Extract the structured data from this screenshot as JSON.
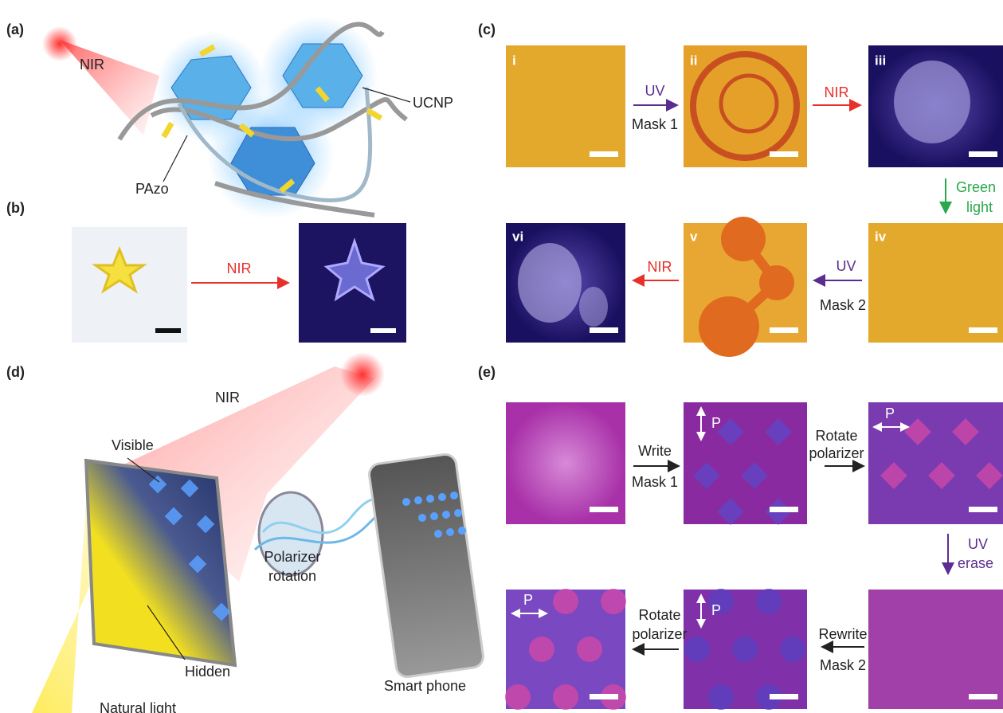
{
  "panels": {
    "a": {
      "label": "(a)",
      "nir": "NIR",
      "ucnp": "UCNP",
      "pazo": "PAzo"
    },
    "b": {
      "label": "(b)",
      "arrow": "NIR"
    },
    "c": {
      "label": "(c)",
      "images": [
        "i",
        "ii",
        "iii",
        "iv",
        "v",
        "vi"
      ],
      "steps": [
        [
          "UV",
          "Mask 1"
        ],
        [
          "NIR"
        ],
        [
          "Green",
          "light"
        ],
        [
          "UV",
          "Mask 2"
        ],
        [
          "NIR"
        ]
      ]
    },
    "d": {
      "label": "(d)",
      "nir": "NIR",
      "visible": "Visible",
      "polarizer": [
        "Polarizer",
        "rotation"
      ],
      "hidden": "Hidden",
      "phone": "Smart phone",
      "natural": "Natural light"
    },
    "e": {
      "label": "(e)",
      "p": [
        "P",
        "P",
        "P",
        "P"
      ],
      "steps": [
        [
          "Write",
          "Mask 1"
        ],
        [
          "Rotate",
          "polarizer"
        ],
        [
          "UV",
          "erase"
        ],
        [
          "Rewrite",
          "Mask 2"
        ],
        [
          "Rotate",
          "polarizer"
        ]
      ]
    }
  }
}
